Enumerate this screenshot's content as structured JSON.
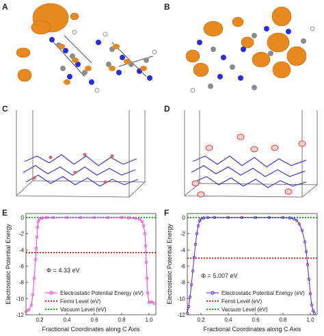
{
  "panels": {
    "a": {
      "letter": "A"
    },
    "b": {
      "letter": "B"
    },
    "c": {
      "letter": "C"
    },
    "d": {
      "letter": "D"
    },
    "e": {
      "letter": "E"
    },
    "f": {
      "letter": "F"
    }
  },
  "colors": {
    "orbital": "#e8891f",
    "carbon": "#8c8c8c",
    "nitrogen": "#2b2bdc",
    "hydrogen": "#f2f2f2",
    "oxygen": "#d94040",
    "box": "#555555",
    "potential_e": "#ff33dd",
    "potential_f": "#5522cc",
    "fermi": "#e02020",
    "vacuum": "#1aa11a"
  },
  "chart_data": [
    {
      "type": "line",
      "panel": "E",
      "xlabel": "Fractional Coordinates along C Axis",
      "ylabel": "Electrostatic Potential Energy",
      "xlim": [
        0.1,
        1.05
      ],
      "ylim": [
        -12,
        0.5
      ],
      "xticks": [
        "0.2",
        "0.4",
        "0.6",
        "0.8",
        "1.0"
      ],
      "yticks": [
        "0",
        "-2",
        "-4",
        "-6",
        "-8",
        "-10",
        "-12"
      ],
      "annotation": "Φ = 4.33 eV",
      "legend_position": "bottom-center",
      "series": [
        {
          "name": "Electrostatic Potential Energy (eV)",
          "style": "line-markers",
          "x": [
            0.1,
            0.12,
            0.14,
            0.15,
            0.16,
            0.17,
            0.175,
            0.18,
            0.185,
            0.19,
            0.2,
            0.22,
            0.25,
            0.3,
            0.4,
            0.5,
            0.6,
            0.7,
            0.8,
            0.85,
            0.9,
            0.93,
            0.95,
            0.96,
            0.97,
            0.975,
            0.98,
            0.985,
            0.99,
            1.0,
            1.02,
            1.04
          ],
          "y": [
            -11.6,
            -11.4,
            -10.8,
            -9.5,
            -7.5,
            -5.2,
            -3.8,
            -2.4,
            -1.2,
            -0.5,
            -0.15,
            -0.05,
            0.0,
            0.0,
            0.0,
            0.0,
            0.0,
            0.0,
            0.0,
            -0.05,
            -0.1,
            -0.2,
            -0.5,
            -1.0,
            -2.0,
            -3.5,
            -5.5,
            -7.5,
            -9.3,
            -10.5,
            -10.4,
            -10.6
          ]
        },
        {
          "name": "Fermi Level (eV)",
          "style": "dotted",
          "y_const": -4.33
        },
        {
          "name": "Vacuum Level (eV)",
          "style": "dotted",
          "y_const": 0
        }
      ]
    },
    {
      "type": "line",
      "panel": "F",
      "xlabel": "Fractional Coordinates along C Axis",
      "ylabel": "Electrostatic Potential Energy",
      "xlim": [
        0.1,
        1.05
      ],
      "ylim": [
        -12,
        0.5
      ],
      "xticks": [
        "0.2",
        "0.4",
        "0.6",
        "0.8",
        "1.0"
      ],
      "yticks": [
        "0",
        "-2",
        "-4",
        "-6",
        "-8",
        "-10",
        "-12"
      ],
      "annotation": "Φ = 5.007 eV",
      "legend_position": "bottom-center",
      "series": [
        {
          "name": "Electrostatic Potential Energy (eV)",
          "style": "line-markers",
          "x": [
            0.1,
            0.11,
            0.12,
            0.13,
            0.14,
            0.15,
            0.16,
            0.17,
            0.18,
            0.19,
            0.2,
            0.22,
            0.25,
            0.3,
            0.4,
            0.5,
            0.6,
            0.7,
            0.8,
            0.85,
            0.88,
            0.9,
            0.92,
            0.94,
            0.96,
            0.97,
            0.98,
            0.99,
            1.0,
            1.01,
            1.02,
            1.03
          ],
          "y": [
            -11.8,
            -11.0,
            -9.8,
            -8.3,
            -6.6,
            -4.9,
            -3.3,
            -2.0,
            -1.0,
            -0.4,
            -0.15,
            -0.05,
            0.0,
            0.0,
            0.0,
            0.0,
            0.0,
            0.0,
            0.0,
            -0.05,
            -0.15,
            -0.35,
            -0.8,
            -1.6,
            -3.0,
            -4.2,
            -5.8,
            -7.6,
            -9.4,
            -10.8,
            -11.5,
            -11.8
          ]
        },
        {
          "name": "Fermi Level (eV)",
          "style": "dotted",
          "y_const": -5.007
        },
        {
          "name": "Vacuum Level (eV)",
          "style": "dotted",
          "y_const": 0
        }
      ]
    }
  ]
}
